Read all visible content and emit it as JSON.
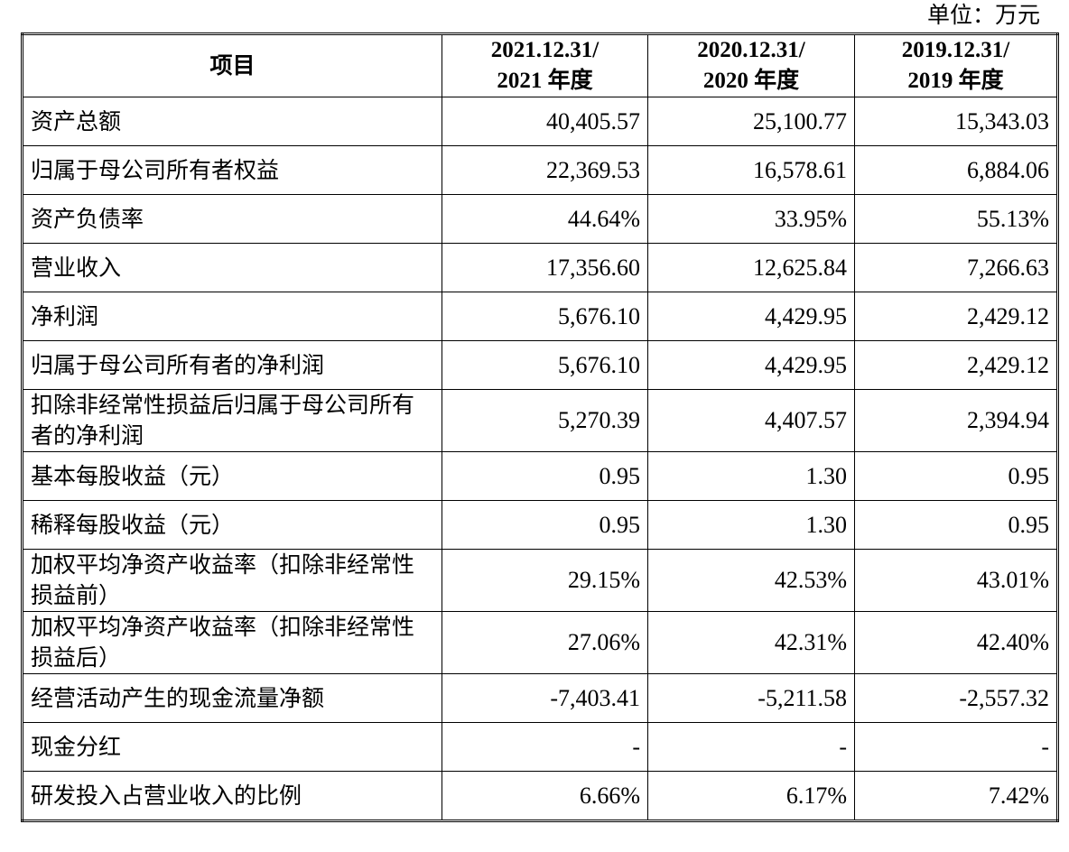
{
  "unit_label": "单位：万元",
  "table": {
    "header": {
      "item": "项目",
      "col1_line1": "2021.12.31/",
      "col1_line2": "2021 年度",
      "col2_line1": "2020.12.31/",
      "col2_line2": "2020 年度",
      "col3_line1": "2019.12.31/",
      "col3_line2": "2019 年度"
    },
    "rows": [
      {
        "label": "资产总额",
        "v2021": "40,405.57",
        "v2020": "25,100.77",
        "v2019": "15,343.03"
      },
      {
        "label": "归属于母公司所有者权益",
        "v2021": "22,369.53",
        "v2020": "16,578.61",
        "v2019": "6,884.06"
      },
      {
        "label": "资产负债率",
        "v2021": "44.64%",
        "v2020": "33.95%",
        "v2019": "55.13%"
      },
      {
        "label": "营业收入",
        "v2021": "17,356.60",
        "v2020": "12,625.84",
        "v2019": "7,266.63"
      },
      {
        "label": "净利润",
        "v2021": "5,676.10",
        "v2020": "4,429.95",
        "v2019": "2,429.12"
      },
      {
        "label": "归属于母公司所有者的净利润",
        "v2021": "5,676.10",
        "v2020": "4,429.95",
        "v2019": "2,429.12"
      },
      {
        "label": "扣除非经常性损益后归属于母公司所有者的净利润",
        "v2021": "5,270.39",
        "v2020": "4,407.57",
        "v2019": "2,394.94"
      },
      {
        "label": "基本每股收益（元）",
        "v2021": "0.95",
        "v2020": "1.30",
        "v2019": "0.95"
      },
      {
        "label": "稀释每股收益（元）",
        "v2021": "0.95",
        "v2020": "1.30",
        "v2019": "0.95"
      },
      {
        "label": "加权平均净资产收益率（扣除非经常性损益前）",
        "v2021": "29.15%",
        "v2020": "42.53%",
        "v2019": "43.01%"
      },
      {
        "label": "加权平均净资产收益率（扣除非经常性损益后）",
        "v2021": "27.06%",
        "v2020": "42.31%",
        "v2019": "42.40%"
      },
      {
        "label": "经营活动产生的现金流量净额",
        "v2021": "-7,403.41",
        "v2020": "-5,211.58",
        "v2019": "-2,557.32"
      },
      {
        "label": "现金分红",
        "v2021": "-",
        "v2020": "-",
        "v2019": "-"
      },
      {
        "label": "研发投入占营业收入的比例",
        "v2021": "6.66%",
        "v2020": "6.17%",
        "v2019": "7.42%"
      }
    ]
  }
}
